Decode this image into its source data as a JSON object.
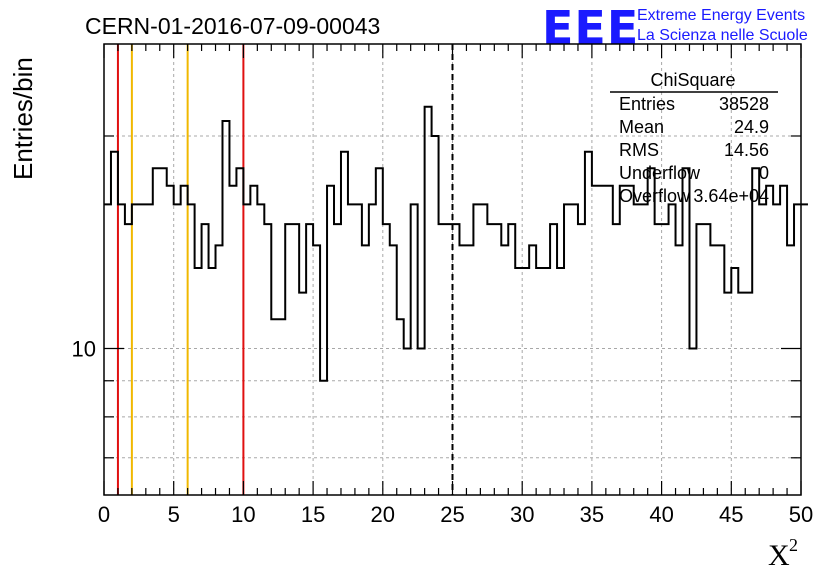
{
  "header": {
    "run_id": "CERN-01-2016-07-09-00043",
    "logo": "EEE",
    "logo_line1": "Extreme Energy Events",
    "logo_line2": "La Scienza nelle Scuole",
    "logo_color": "#1a1aff"
  },
  "stats": {
    "title": "ChiSquare",
    "rows": [
      {
        "label": "Entries",
        "value": "38528"
      },
      {
        "label": "Mean",
        "value": "24.9"
      },
      {
        "label": "RMS",
        "value": "14.56"
      },
      {
        "label": "Underflow",
        "value": "0"
      },
      {
        "label": "Overflow",
        "value": "3.64e+04"
      }
    ]
  },
  "chart_data": {
    "type": "histogram",
    "title": "CERN-01-2016-07-09-00043",
    "xlabel": "X",
    "xlabel_superscript": "2",
    "ylabel": "Entries/bin",
    "xlim": [
      0,
      50
    ],
    "ylim": [
      6.2,
      27
    ],
    "yscale": "log",
    "grid": true,
    "bin_width": 0.5,
    "xticks": [
      0,
      5,
      10,
      15,
      20,
      25,
      30,
      35,
      40,
      45,
      50
    ],
    "yticks": [
      10
    ],
    "counts": [
      16,
      19,
      16,
      15,
      16,
      16,
      16,
      18,
      18,
      17,
      16,
      17,
      16,
      13,
      15,
      13,
      14,
      21,
      17,
      18,
      16,
      17,
      16,
      15,
      11,
      11,
      15,
      15,
      12,
      15,
      14,
      9,
      17,
      15,
      19,
      16,
      16,
      14,
      16,
      18,
      15,
      14,
      11,
      10,
      16,
      10,
      22,
      20,
      15,
      15,
      15,
      14,
      14,
      16,
      16,
      15,
      15,
      14,
      15,
      13,
      13,
      14,
      13,
      13,
      15,
      13,
      16,
      16,
      15,
      19,
      17,
      17,
      17,
      15,
      17,
      17,
      16,
      16,
      18,
      15,
      15,
      16,
      14,
      18,
      10,
      15,
      15,
      14,
      14,
      12,
      13,
      12,
      12,
      18,
      16,
      17,
      16,
      17,
      14,
      16,
      16
    ],
    "vertical_lines": [
      {
        "x": 1,
        "color": "#e01010",
        "style": "solid"
      },
      {
        "x": 2,
        "color": "#f0b800",
        "style": "solid"
      },
      {
        "x": 6,
        "color": "#f0b800",
        "style": "solid"
      },
      {
        "x": 10,
        "color": "#e01010",
        "style": "solid"
      },
      {
        "x": 25,
        "color": "#000000",
        "style": "dashed"
      }
    ]
  }
}
